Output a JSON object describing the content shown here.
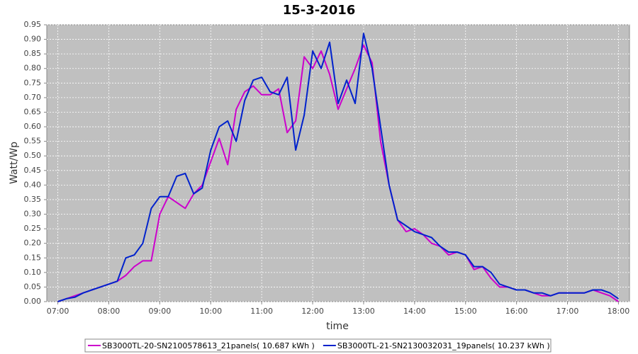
{
  "chart_data": {
    "type": "line",
    "title": "15-3-2016",
    "x_label": "time",
    "y_label": "Watt/Wp",
    "x": [
      "07:00",
      "07:10",
      "07:20",
      "07:30",
      "07:40",
      "07:50",
      "08:00",
      "08:10",
      "08:20",
      "08:30",
      "08:40",
      "08:50",
      "09:00",
      "09:10",
      "09:20",
      "09:30",
      "09:40",
      "09:50",
      "10:00",
      "10:10",
      "10:20",
      "10:30",
      "10:40",
      "10:50",
      "11:00",
      "11:10",
      "11:20",
      "11:30",
      "11:40",
      "11:50",
      "12:00",
      "12:10",
      "12:20",
      "12:30",
      "12:40",
      "12:50",
      "13:00",
      "13:10",
      "13:20",
      "13:30",
      "13:40",
      "13:50",
      "14:00",
      "14:10",
      "14:20",
      "14:30",
      "14:40",
      "14:50",
      "15:00",
      "15:10",
      "15:20",
      "15:30",
      "15:40",
      "15:50",
      "16:00",
      "16:10",
      "16:20",
      "16:30",
      "16:40",
      "16:50",
      "17:00",
      "17:10",
      "17:20",
      "17:30",
      "17:40",
      "17:50",
      "18:00"
    ],
    "series": [
      {
        "name": "SB3000TL-20-SN2100578613_21panels( 10.687 kWh )",
        "color": "#cc00cc",
        "values": [
          0,
          0.01,
          0.02,
          0.03,
          0.04,
          0.05,
          0.06,
          0.07,
          0.09,
          0.12,
          0.14,
          0.14,
          0.3,
          0.36,
          0.34,
          0.32,
          0.37,
          0.4,
          0.48,
          0.56,
          0.47,
          0.66,
          0.72,
          0.74,
          0.71,
          0.71,
          0.73,
          0.58,
          0.62,
          0.84,
          0.8,
          0.86,
          0.78,
          0.66,
          0.73,
          0.8,
          0.88,
          0.82,
          0.55,
          0.4,
          0.28,
          0.24,
          0.25,
          0.23,
          0.2,
          0.19,
          0.16,
          0.17,
          0.16,
          0.11,
          0.12,
          0.08,
          0.05,
          0.05,
          0.04,
          0.04,
          0.03,
          0.02,
          0.02,
          0.03,
          0.03,
          0.03,
          0.03,
          0.04,
          0.03,
          0.02,
          0
        ]
      },
      {
        "name": "SB3000TL-21-SN2130032031_19panels( 10.237 kWh )",
        "color": "#0022cc",
        "values": [
          0,
          0.01,
          0.015,
          0.03,
          0.04,
          0.05,
          0.06,
          0.07,
          0.15,
          0.16,
          0.2,
          0.32,
          0.36,
          0.36,
          0.43,
          0.44,
          0.37,
          0.39,
          0.52,
          0.6,
          0.62,
          0.55,
          0.69,
          0.76,
          0.77,
          0.72,
          0.71,
          0.77,
          0.52,
          0.64,
          0.86,
          0.8,
          0.89,
          0.68,
          0.76,
          0.68,
          0.92,
          0.8,
          0.6,
          0.4,
          0.28,
          0.26,
          0.24,
          0.23,
          0.22,
          0.19,
          0.17,
          0.17,
          0.16,
          0.12,
          0.12,
          0.1,
          0.06,
          0.05,
          0.04,
          0.04,
          0.03,
          0.03,
          0.02,
          0.03,
          0.03,
          0.03,
          0.03,
          0.04,
          0.04,
          0.03,
          0.01
        ]
      }
    ],
    "xlim": [
      "06:47",
      "18:13"
    ],
    "xticks": [
      "07:00",
      "08:00",
      "09:00",
      "10:00",
      "11:00",
      "12:00",
      "13:00",
      "14:00",
      "15:00",
      "16:00",
      "17:00",
      "18:00"
    ],
    "ylim": [
      0,
      0.95
    ],
    "yticks": [
      {
        "value": 0,
        "label": "0.00"
      },
      {
        "value": 0.05,
        "label": "0.05"
      },
      {
        "value": 0.1,
        "label": "0.10"
      },
      {
        "value": 0.15,
        "label": "0.15"
      },
      {
        "value": 0.2,
        "label": "0.20"
      },
      {
        "value": 0.25,
        "label": "0.25"
      },
      {
        "value": 0.3,
        "label": "0.30"
      },
      {
        "value": 0.35,
        "label": "0.35"
      },
      {
        "value": 0.4,
        "label": "0.40"
      },
      {
        "value": 0.45,
        "label": "0.45"
      },
      {
        "value": 0.5,
        "label": "0.50"
      },
      {
        "value": 0.55,
        "label": "0.55"
      },
      {
        "value": 0.6,
        "label": "0.60"
      },
      {
        "value": 0.65,
        "label": "0.65"
      },
      {
        "value": 0.7,
        "label": "0.70"
      },
      {
        "value": 0.75,
        "label": "0.75"
      },
      {
        "value": 0.8,
        "label": "0.80"
      },
      {
        "value": 0.85,
        "label": "0.85"
      },
      {
        "value": 0.9,
        "label": "0.90"
      },
      {
        "value": 0.95,
        "label": "0.95"
      }
    ],
    "grid": true,
    "legend": "bottom"
  }
}
